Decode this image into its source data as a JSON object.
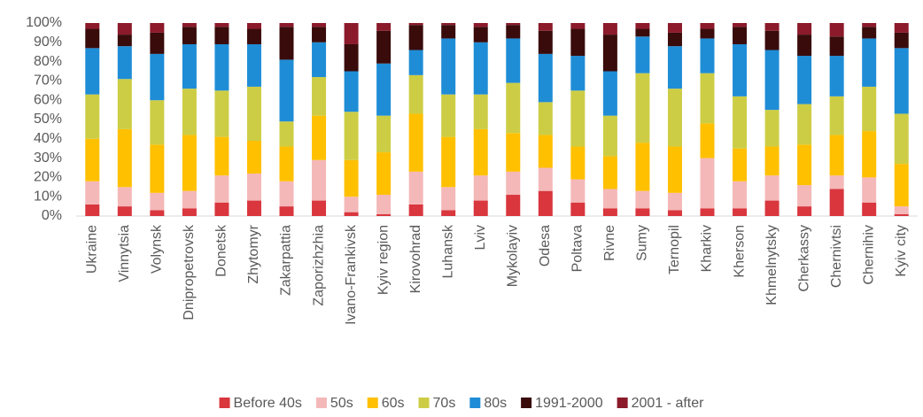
{
  "chart_data": {
    "type": "stacked_bar",
    "categories": [
      "Ukraine",
      "Vinnytsia",
      "Volynsk",
      "Dnipropetrovsk",
      "Donetsk",
      "Zhytomyr",
      "Zakarpattia",
      "Zaporizhzhia",
      "Ivano-Frankivsk",
      "Kyiv region",
      "Kirovohrad",
      "Luhansk",
      "Lviv",
      "Mykolayiv",
      "Odesa",
      "Poltava",
      "Rivne",
      "Sumy",
      "Ternopil",
      "Kharkiv",
      "Kherson",
      "Khmelnytsky",
      "Cherkassy",
      "Chernivtsi",
      "Chernihiv",
      "Kyiv city"
    ],
    "series": [
      {
        "name": "Before 40s",
        "color": "#d9363e",
        "values": [
          6,
          5,
          3,
          4,
          7,
          8,
          5,
          8,
          2,
          1,
          6,
          3,
          8,
          11,
          13,
          7,
          4,
          4,
          3,
          4,
          4,
          8,
          5,
          14,
          7,
          1
        ]
      },
      {
        "name": "50s",
        "color": "#f4b8b8",
        "values": [
          12,
          10,
          9,
          9,
          14,
          14,
          13,
          21,
          8,
          10,
          17,
          12,
          13,
          12,
          12,
          12,
          10,
          9,
          9,
          26,
          14,
          13,
          11,
          7,
          13,
          4
        ]
      },
      {
        "name": "60s",
        "color": "#ffc000",
        "values": [
          22,
          30,
          25,
          29,
          20,
          17,
          18,
          23,
          19,
          22,
          30,
          26,
          24,
          20,
          17,
          17,
          17,
          25,
          24,
          18,
          17,
          15,
          21,
          21,
          24,
          22
        ]
      },
      {
        "name": "70s",
        "color": "#cdcd45",
        "values": [
          23,
          26,
          23,
          24,
          24,
          28,
          13,
          20,
          25,
          19,
          20,
          22,
          18,
          26,
          17,
          29,
          21,
          36,
          30,
          26,
          27,
          19,
          21,
          20,
          23,
          26
        ]
      },
      {
        "name": "80s",
        "color": "#1f8dd6",
        "values": [
          24,
          17,
          24,
          23,
          24,
          22,
          32,
          18,
          21,
          27,
          13,
          29,
          27,
          23,
          25,
          18,
          23,
          19,
          22,
          18,
          27,
          31,
          25,
          21,
          25,
          34
        ]
      },
      {
        "name": "1991-2000",
        "color": "#3a0b0b",
        "values": [
          10,
          6,
          11,
          9,
          9,
          8,
          17,
          8,
          14,
          17,
          13,
          7,
          8,
          7,
          12,
          14,
          19,
          4,
          7,
          5,
          9,
          10,
          11,
          10,
          6,
          8
        ]
      },
      {
        "name": "2001 - after",
        "color": "#8b1a2b",
        "values": [
          3,
          6,
          5,
          2,
          2,
          3,
          2,
          2,
          11,
          4,
          1,
          1,
          2,
          1,
          4,
          3,
          6,
          3,
          5,
          3,
          2,
          4,
          6,
          7,
          2,
          5
        ]
      }
    ],
    "ylim": [
      0,
      100
    ],
    "yticks": [
      {
        "value": 0,
        "label": "0%"
      },
      {
        "value": 10,
        "label": "10%"
      },
      {
        "value": 20,
        "label": "20%"
      },
      {
        "value": 30,
        "label": "30%"
      },
      {
        "value": 40,
        "label": "40%"
      },
      {
        "value": 50,
        "label": "50%"
      },
      {
        "value": 60,
        "label": "60%"
      },
      {
        "value": 70,
        "label": "70%"
      },
      {
        "value": 80,
        "label": "80%"
      },
      {
        "value": 90,
        "label": "90%"
      },
      {
        "value": 100,
        "label": "100%"
      }
    ],
    "legend": "bottom"
  }
}
